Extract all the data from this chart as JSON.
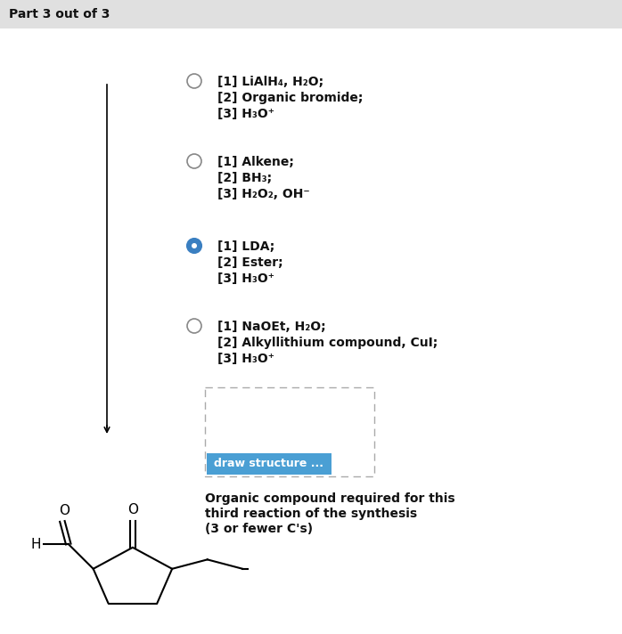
{
  "title": "Part 3 out of 3",
  "title_bg": "#e0e0e0",
  "background": "#ffffff",
  "options": [
    {
      "selected": false,
      "lines": [
        "[1] LiAlH₄, H₂O;",
        "[2] Organic bromide;",
        "[3] H₃O⁺"
      ]
    },
    {
      "selected": false,
      "lines": [
        "[1] Alkene;",
        "[2] BH₃;",
        "[3] H₂O₂, OH⁻"
      ]
    },
    {
      "selected": true,
      "lines": [
        "[1] LDA;",
        "[2] Ester;",
        "[3] H₃O⁺"
      ]
    },
    {
      "selected": false,
      "lines": [
        "[1] NaOEt, H₂O;",
        "[2] Alkyllithium compound, CuI;",
        "[3] H₃O⁺"
      ]
    }
  ],
  "draw_button_text": "draw structure ...",
  "draw_button_color": "#4a9fd4",
  "draw_button_text_color": "#ffffff",
  "caption_lines": [
    "Organic compound required for this",
    "third reaction of the synthesis",
    "(3 or fewer C's)"
  ],
  "radio_selected_fill": "#3a7fc1",
  "radio_unselected_fill": "#ffffff",
  "radio_border": "#888888",
  "radio_selected_border": "#3a7fc1"
}
